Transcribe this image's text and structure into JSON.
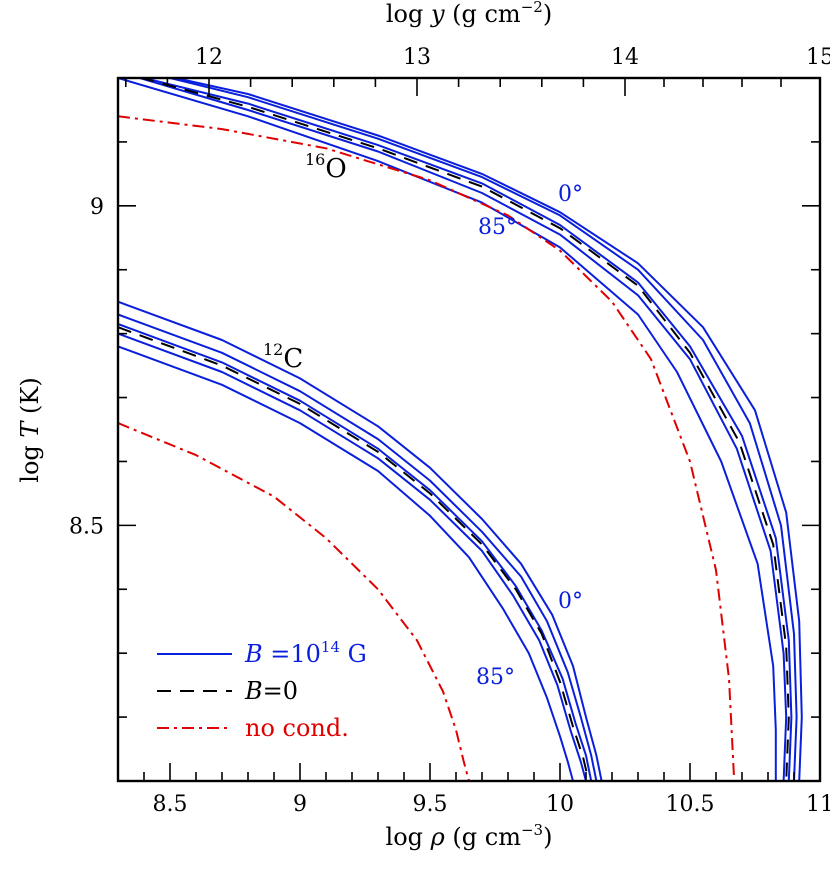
{
  "chart_data": {
    "type": "line",
    "xlabel_prefix": "log ",
    "xlabel_symbol": "ρ",
    "xlabel_unit": " (g cm",
    "xlabel_exp": "−3",
    "xlabel_close": ")",
    "ylabel_prefix": "log ",
    "ylabel_symbol": "T",
    "ylabel_unit": " (K)",
    "top_label_prefix": "log ",
    "top_label_symbol": "y",
    "top_label_unit": " (g cm",
    "top_label_exp": "−2",
    "top_label_close": ")",
    "xlim": [
      8.3,
      11.0
    ],
    "ylim": [
      8.1,
      9.2
    ],
    "x_ticks": [
      "8.5",
      "9",
      "9.5",
      "10",
      "10.5",
      "11"
    ],
    "y_ticks": [
      "8.5",
      "9"
    ],
    "top_ticks": [
      "12",
      "13",
      "14",
      "15"
    ],
    "top_tick_rho": [
      8.65,
      9.45,
      10.25,
      11.0
    ],
    "grid": false,
    "legend_position": "bottom-left",
    "legend": [
      {
        "style": "solid",
        "color": "#0a1fdc",
        "text_prefix": "B",
        "text_mid": " =10",
        "text_exp": "14",
        "text_suffix": " G"
      },
      {
        "style": "dashed",
        "color": "#000000",
        "text_prefix": "B",
        "text_mid": "=0",
        "text_exp": "",
        "text_suffix": ""
      },
      {
        "style": "dashdot",
        "color": "#e00000",
        "text_prefix": "",
        "text_mid": "no cond.",
        "text_exp": "",
        "text_suffix": ""
      }
    ],
    "annotations": {
      "o16": {
        "mass": "16",
        "element": "O"
      },
      "c12": {
        "mass": "12",
        "element": "C"
      },
      "o_angle_top": "0°",
      "o_angle_bottom": "85°",
      "c_angle_top": "0°",
      "c_angle_bottom": "85°"
    },
    "series": [
      {
        "group": "O16",
        "style": "solid",
        "color": "#0a1fdc",
        "x": [
          8.3,
          8.8,
          9.3,
          9.7,
          10.0,
          10.3,
          10.55,
          10.75,
          10.87,
          10.92,
          10.93,
          10.92
        ],
        "y": [
          9.22,
          9.175,
          9.11,
          9.05,
          8.99,
          8.91,
          8.81,
          8.68,
          8.52,
          8.35,
          8.2,
          8.1
        ]
      },
      {
        "group": "O16",
        "style": "solid",
        "color": "#0a1fdc",
        "x": [
          8.3,
          8.8,
          9.3,
          9.7,
          10.0,
          10.3,
          10.55,
          10.73,
          10.85,
          10.9,
          10.91,
          10.9
        ],
        "y": [
          9.22,
          9.17,
          9.105,
          9.045,
          8.985,
          8.9,
          8.79,
          8.66,
          8.5,
          8.33,
          8.2,
          8.1
        ]
      },
      {
        "group": "O16",
        "style": "solid",
        "color": "#0a1fdc",
        "x": [
          8.3,
          8.8,
          9.3,
          9.7,
          10.0,
          10.3,
          10.5,
          10.7,
          10.83,
          10.88,
          10.89,
          10.88
        ],
        "y": [
          9.21,
          9.16,
          9.095,
          9.035,
          8.97,
          8.88,
          8.78,
          8.64,
          8.48,
          8.32,
          8.2,
          8.1
        ]
      },
      {
        "group": "O16",
        "style": "solid",
        "color": "#0a1fdc",
        "x": [
          8.3,
          8.8,
          9.3,
          9.7,
          10.0,
          10.3,
          10.5,
          10.68,
          10.81,
          10.86,
          10.87,
          10.86
        ],
        "y": [
          9.21,
          9.15,
          9.085,
          9.02,
          8.955,
          8.86,
          8.76,
          8.62,
          8.46,
          8.3,
          8.2,
          8.1
        ]
      },
      {
        "group": "O16",
        "style": "solid",
        "color": "#0a1fdc",
        "x": [
          8.3,
          8.8,
          9.3,
          9.7,
          10.0,
          10.3,
          10.45,
          10.62,
          10.76,
          10.82,
          10.83,
          10.83
        ],
        "y": [
          9.2,
          9.14,
          9.07,
          9.005,
          8.935,
          8.83,
          8.74,
          8.6,
          8.44,
          8.28,
          8.18,
          8.1
        ]
      },
      {
        "group": "O16",
        "style": "dashed",
        "color": "#000000",
        "x": [
          8.3,
          8.8,
          9.3,
          9.7,
          10.0,
          10.3,
          10.5,
          10.69,
          10.82,
          10.87,
          10.88,
          10.87
        ],
        "y": [
          9.21,
          9.155,
          9.09,
          9.03,
          8.965,
          8.875,
          8.77,
          8.63,
          8.47,
          8.31,
          8.2,
          8.1
        ]
      },
      {
        "group": "O16",
        "style": "dashdot",
        "color": "#e00000",
        "x": [
          8.3,
          8.7,
          9.1,
          9.5,
          9.8,
          10.0,
          10.2,
          10.35,
          10.5,
          10.6,
          10.65,
          10.67
        ],
        "y": [
          9.14,
          9.12,
          9.09,
          9.04,
          8.985,
          8.93,
          8.85,
          8.76,
          8.6,
          8.43,
          8.26,
          8.1
        ]
      },
      {
        "group": "C12",
        "style": "solid",
        "color": "#0a1fdc",
        "x": [
          8.3,
          8.7,
          9.0,
          9.3,
          9.5,
          9.7,
          9.85,
          9.97,
          10.05,
          10.1,
          10.14,
          10.16
        ],
        "y": [
          8.85,
          8.79,
          8.73,
          8.655,
          8.59,
          8.51,
          8.44,
          8.36,
          8.28,
          8.2,
          8.14,
          8.1
        ]
      },
      {
        "group": "C12",
        "style": "solid",
        "color": "#0a1fdc",
        "x": [
          8.3,
          8.7,
          9.0,
          9.3,
          9.5,
          9.7,
          9.85,
          9.95,
          10.03,
          10.08,
          10.12,
          10.14
        ],
        "y": [
          8.83,
          8.77,
          8.71,
          8.635,
          8.57,
          8.49,
          8.42,
          8.35,
          8.27,
          8.2,
          8.14,
          8.1
        ]
      },
      {
        "group": "C12",
        "style": "solid",
        "color": "#0a1fdc",
        "x": [
          8.3,
          8.7,
          9.0,
          9.3,
          9.5,
          9.7,
          9.83,
          9.93,
          10.01,
          10.06,
          10.1,
          10.12
        ],
        "y": [
          8.815,
          8.755,
          8.695,
          8.62,
          8.555,
          8.475,
          8.405,
          8.335,
          8.26,
          8.19,
          8.14,
          8.1
        ]
      },
      {
        "group": "C12",
        "style": "solid",
        "color": "#0a1fdc",
        "x": [
          8.3,
          8.7,
          9.0,
          9.3,
          9.5,
          9.7,
          9.82,
          9.92,
          9.99,
          10.04,
          10.08,
          10.1
        ],
        "y": [
          8.8,
          8.74,
          8.68,
          8.605,
          8.54,
          8.46,
          8.39,
          8.32,
          8.25,
          8.18,
          8.13,
          8.1
        ]
      },
      {
        "group": "C12",
        "style": "solid",
        "color": "#0a1fdc",
        "x": [
          8.3,
          8.7,
          9.0,
          9.3,
          9.5,
          9.65,
          9.78,
          9.88,
          9.95,
          10.0,
          10.03,
          10.05
        ],
        "y": [
          8.78,
          8.72,
          8.66,
          8.585,
          8.515,
          8.45,
          8.37,
          8.3,
          8.23,
          8.17,
          8.13,
          8.1
        ]
      },
      {
        "group": "C12",
        "style": "dashed",
        "color": "#000000",
        "x": [
          8.3,
          8.7,
          9.0,
          9.3,
          9.5,
          9.7,
          9.83,
          9.93,
          10.0,
          10.05,
          10.09,
          10.11
        ],
        "y": [
          8.81,
          8.75,
          8.69,
          8.615,
          8.55,
          8.47,
          8.4,
          8.33,
          8.255,
          8.185,
          8.135,
          8.1
        ]
      },
      {
        "group": "C12",
        "style": "dashdot",
        "color": "#e00000",
        "x": [
          8.3,
          8.6,
          8.9,
          9.1,
          9.3,
          9.45,
          9.55,
          9.6,
          9.63,
          9.65
        ],
        "y": [
          8.66,
          8.61,
          8.545,
          8.48,
          8.4,
          8.32,
          8.24,
          8.18,
          8.13,
          8.1
        ]
      }
    ]
  }
}
